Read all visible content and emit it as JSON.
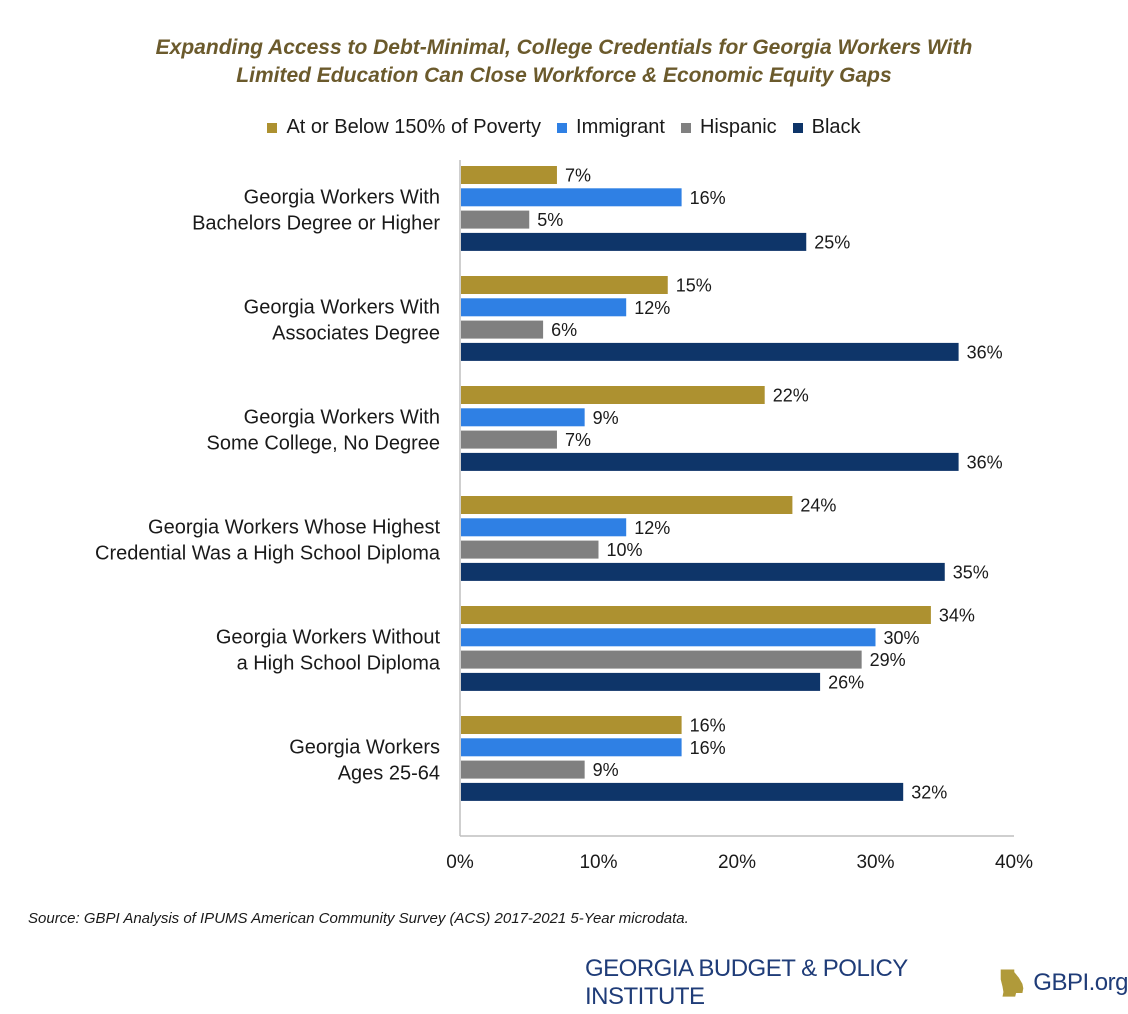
{
  "chart_data": {
    "type": "bar",
    "orientation": "horizontal",
    "title_lines": [
      "Expanding Access to Debt-Minimal, College Credentials for Georgia Workers With",
      "Limited Education Can Close Workforce & Economic Equity Gaps"
    ],
    "categories": [
      [
        "Georgia Workers With",
        "Bachelors Degree or Higher"
      ],
      [
        "Georgia Workers With",
        "Associates Degree"
      ],
      [
        "Georgia Workers With",
        "Some College, No Degree"
      ],
      [
        "Georgia Workers Whose Highest",
        "Credential Was a High School Diploma"
      ],
      [
        "Georgia Workers Without",
        "a High School Diploma"
      ],
      [
        "Georgia Workers",
        "Ages 25-64"
      ]
    ],
    "series": [
      {
        "name": "At or Below 150% of Poverty",
        "color": "#ad9130",
        "values": [
          7,
          15,
          22,
          24,
          34,
          16
        ]
      },
      {
        "name": "Immigrant",
        "color": "#2f80e4",
        "values": [
          16,
          12,
          9,
          12,
          30,
          16
        ]
      },
      {
        "name": "Hispanic",
        "color": "#808080",
        "values": [
          5,
          6,
          7,
          10,
          29,
          9
        ]
      },
      {
        "name": "Black",
        "color": "#0e3569",
        "values": [
          25,
          36,
          36,
          35,
          26,
          32
        ]
      }
    ],
    "value_suffix": "%",
    "xlim": [
      0,
      40
    ],
    "xticks": [
      "0%",
      "10%",
      "20%",
      "30%",
      "40%"
    ],
    "xtick_values": [
      0,
      10,
      20,
      30,
      40
    ],
    "legend_position": "top",
    "grid": false
  },
  "source": "Source: GBPI Analysis of IPUMS American Community Survey (ACS) 2017-2021 5-Year microdata.",
  "footer": {
    "org_name": "GEORGIA BUDGET & POLICY INSTITUTE",
    "website": "GBPI.org",
    "icon": "georgia-state-icon"
  }
}
